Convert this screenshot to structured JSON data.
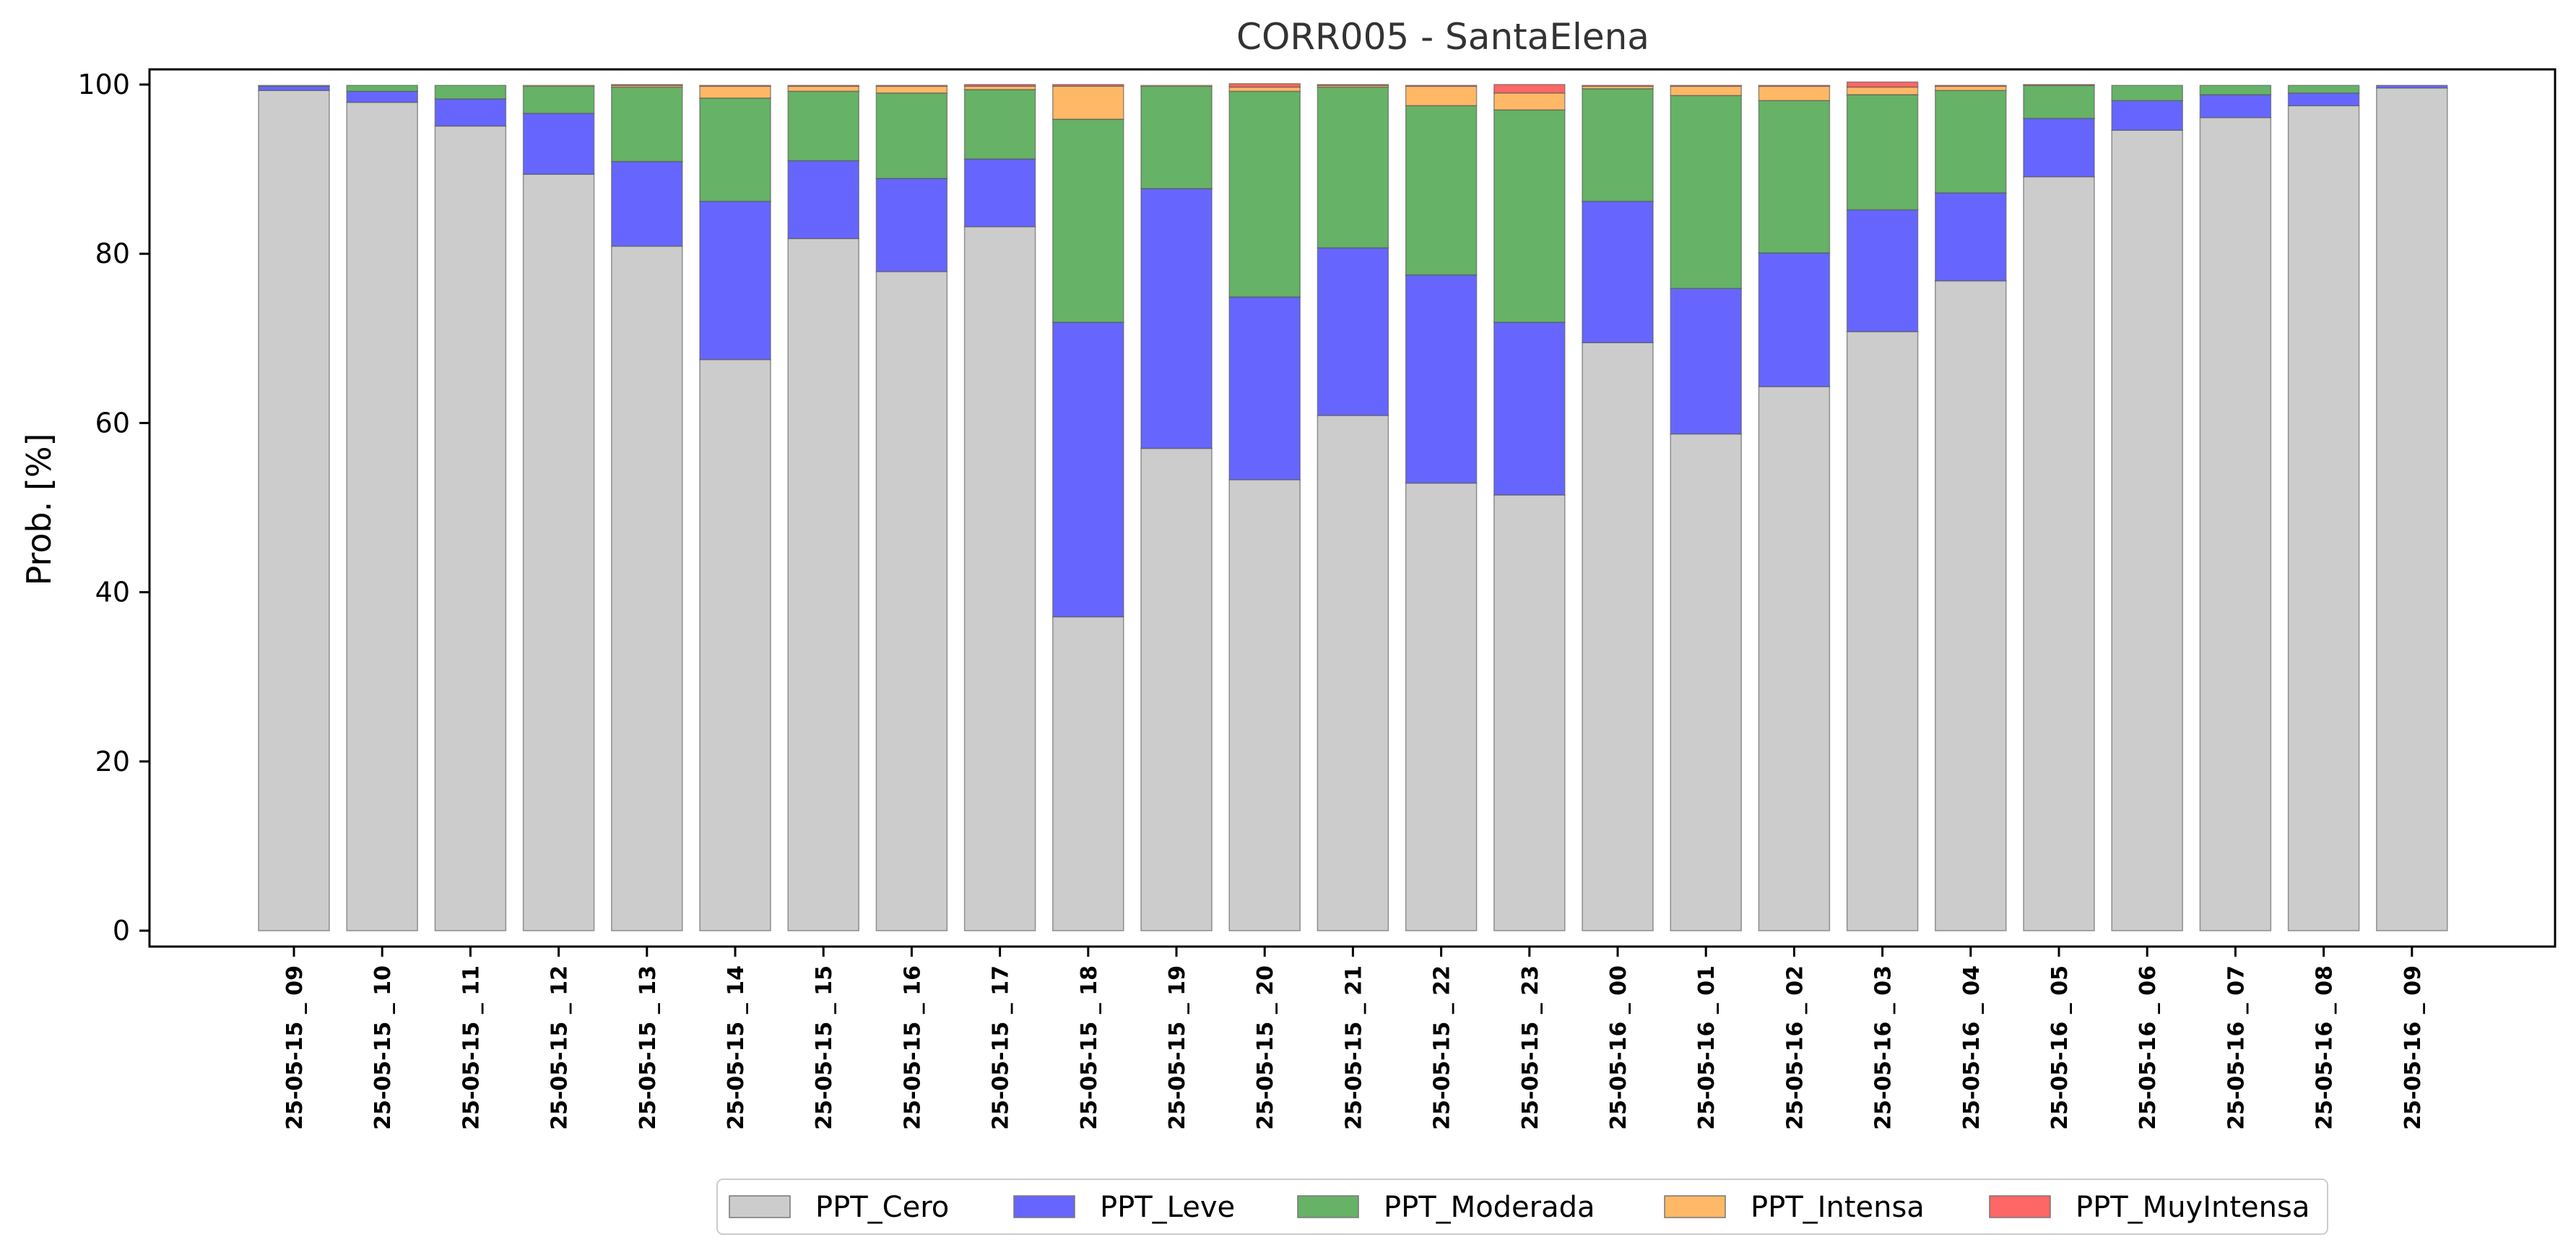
{
  "chart_data": {
    "type": "bar",
    "stacked": true,
    "title": "CORR005 - SantaElena",
    "xlabel": "",
    "ylabel": "Prob. [%]",
    "ylim": [
      0,
      100
    ],
    "yticks": [
      0,
      20,
      40,
      60,
      80,
      100
    ],
    "grid": false,
    "legend_position": "bottom-center",
    "categories": [
      "25-05-15 _ 09",
      "25-05-15 _ 10",
      "25-05-15 _ 11",
      "25-05-15 _ 12",
      "25-05-15 _ 13",
      "25-05-15 _ 14",
      "25-05-15 _ 15",
      "25-05-15 _ 16",
      "25-05-15 _ 17",
      "25-05-15 _ 18",
      "25-05-15 _ 19",
      "25-05-15 _ 20",
      "25-05-15 _ 21",
      "25-05-15 _ 22",
      "25-05-15 _ 23",
      "25-05-16 _ 00",
      "25-05-16 _ 01",
      "25-05-16 _ 02",
      "25-05-16 _ 03",
      "25-05-16 _ 04",
      "25-05-16 _ 05",
      "25-05-16 _ 06",
      "25-05-16 _ 07",
      "25-05-16 _ 08",
      "25-05-16 _ 09"
    ],
    "series": [
      {
        "name": "PPT_Cero",
        "color": "#cccccc",
        "values": [
          99.3,
          97.9,
          95.1,
          89.4,
          80.9,
          67.5,
          81.8,
          77.9,
          83.2,
          37.1,
          57.0,
          53.3,
          60.9,
          52.9,
          51.5,
          69.5,
          58.7,
          64.3,
          70.8,
          76.8,
          89.1,
          94.6,
          96.1,
          97.5,
          99.6
        ]
      },
      {
        "name": "PPT_Leve",
        "color": "#6666ff",
        "values": [
          0.5,
          1.3,
          3.2,
          7.2,
          10.0,
          18.7,
          9.2,
          11.0,
          8.0,
          34.8,
          30.7,
          21.6,
          19.8,
          24.6,
          20.4,
          16.7,
          17.2,
          15.8,
          14.4,
          10.4,
          6.9,
          3.5,
          2.7,
          1.5,
          0.3
        ]
      },
      {
        "name": "PPT_Moderada",
        "color": "#66b266",
        "values": [
          0.1,
          0.7,
          1.6,
          3.2,
          8.8,
          12.2,
          8.2,
          10.1,
          8.2,
          24.0,
          12.1,
          24.3,
          19.0,
          20.0,
          25.1,
          13.3,
          22.8,
          18.0,
          13.6,
          12.1,
          3.9,
          1.8,
          1.1,
          0.9,
          0.0
        ]
      },
      {
        "name": "PPT_Intensa",
        "color": "#ffb866",
        "values": [
          0.0,
          0.0,
          0.0,
          0.1,
          0.2,
          1.4,
          0.6,
          0.8,
          0.4,
          3.9,
          0.1,
          0.5,
          0.2,
          2.3,
          2.0,
          0.3,
          1.1,
          1.7,
          0.9,
          0.5,
          0.0,
          0.0,
          0.0,
          0.0,
          0.0
        ]
      },
      {
        "name": "PPT_MuyIntensa",
        "color": "#ff6666",
        "values": [
          0.0,
          0.0,
          0.0,
          0.0,
          0.1,
          0.1,
          0.1,
          0.1,
          0.2,
          0.2,
          0.0,
          0.4,
          0.1,
          0.1,
          1.0,
          0.1,
          0.1,
          0.1,
          0.6,
          0.1,
          0.1,
          0.0,
          0.0,
          0.0,
          0.0
        ]
      }
    ]
  }
}
